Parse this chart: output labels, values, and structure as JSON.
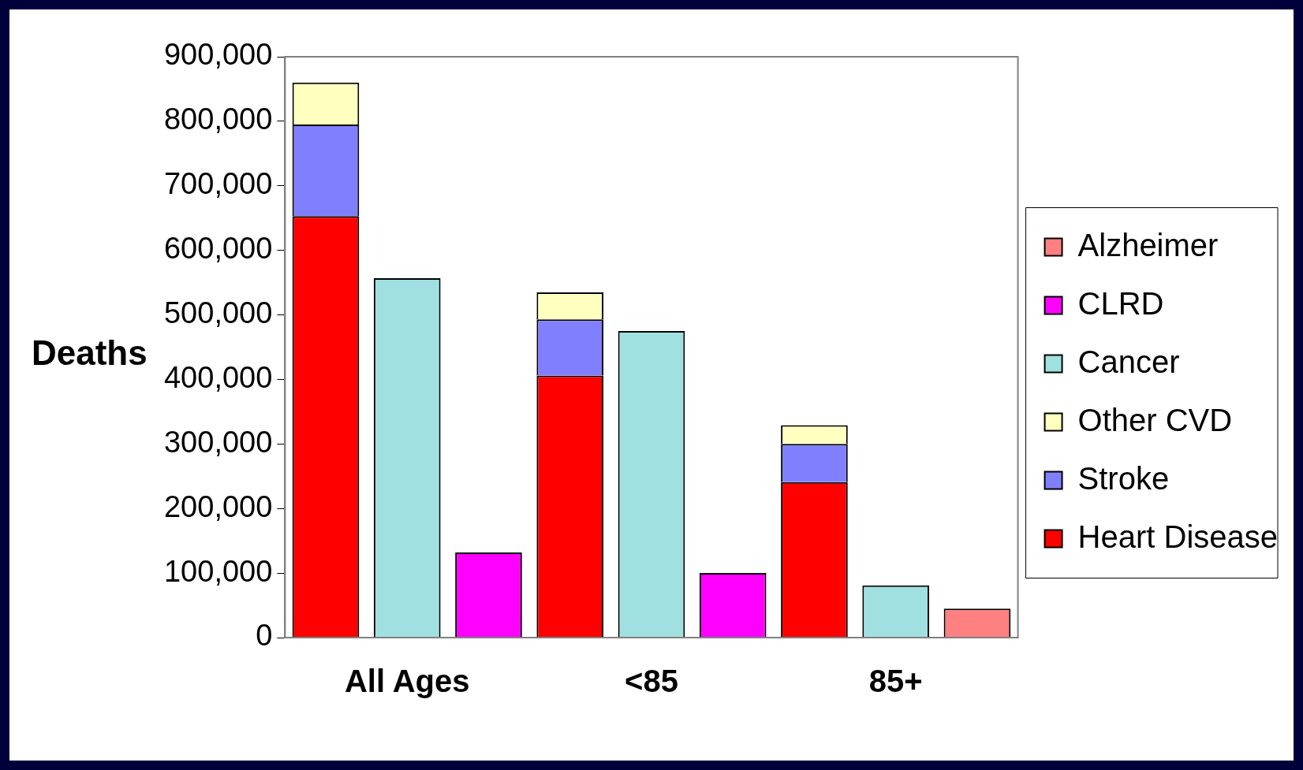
{
  "chart_data": {
    "type": "bar",
    "stacked": true,
    "ylabel": "Deaths",
    "categories": [
      null,
      "All Ages",
      null,
      null,
      "<85",
      null,
      null,
      "85+",
      null
    ],
    "series": [
      {
        "name": "Heart Disease",
        "color": "#ff0000",
        "values": [
          653000,
          null,
          null,
          406000,
          null,
          null,
          241000,
          null,
          null
        ]
      },
      {
        "name": "Stroke",
        "color": "#8080ff",
        "values": [
          142000,
          null,
          null,
          87000,
          null,
          null,
          59000,
          null,
          null
        ]
      },
      {
        "name": "Other CVD",
        "color": "#ffffc0",
        "values": [
          65000,
          null,
          null,
          42000,
          null,
          null,
          29000,
          null,
          null
        ]
      },
      {
        "name": "Cancer",
        "color": "#a0e0e0",
        "values": [
          null,
          557000,
          null,
          null,
          475000,
          null,
          null,
          81000,
          null
        ]
      },
      {
        "name": "CLRD",
        "color": "#ff00ff",
        "values": [
          null,
          null,
          132000,
          null,
          null,
          100000,
          null,
          null,
          null
        ]
      },
      {
        "name": "Alzheimer",
        "color": "#ff8080",
        "values": [
          null,
          null,
          null,
          null,
          null,
          null,
          null,
          null,
          45000
        ]
      }
    ],
    "ylim": [
      0,
      900000
    ],
    "yticks": [
      0,
      {
        "value": 100000,
        "label": "100,000"
      },
      {
        "value": 200000,
        "label": "200,000"
      },
      {
        "value": 300000,
        "label": "300,000"
      },
      {
        "value": 400000,
        "label": "400,000"
      },
      {
        "value": 500000,
        "label": "500,000"
      },
      {
        "value": 600000,
        "label": "600,000"
      },
      {
        "value": 700000,
        "label": "700,000"
      },
      {
        "value": 800000,
        "label": "800,000"
      },
      {
        "value": 900000,
        "label": "900,000"
      }
    ],
    "grid": false,
    "legend": "right"
  }
}
